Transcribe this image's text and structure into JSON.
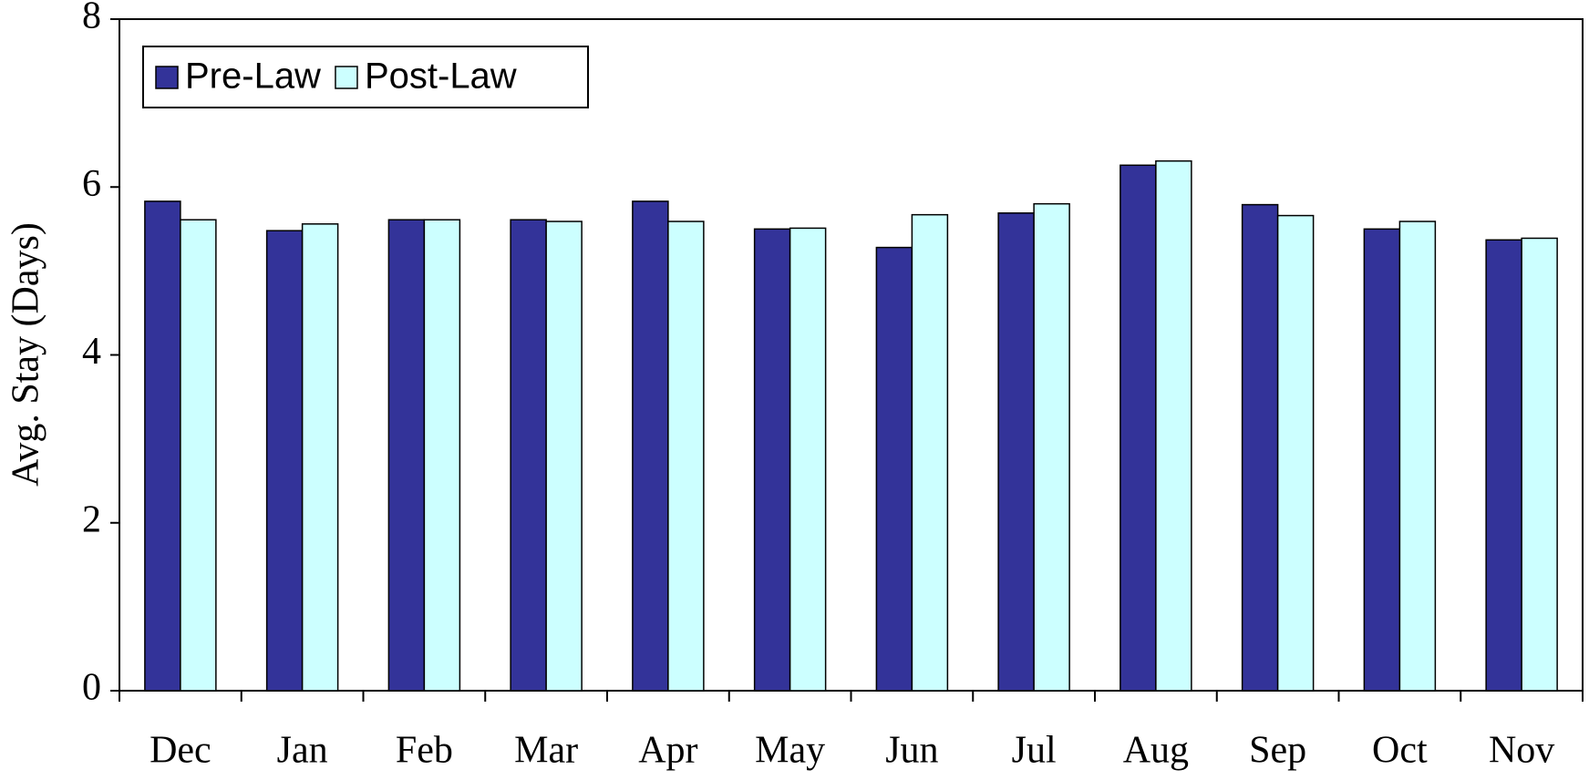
{
  "chart_data": {
    "type": "bar",
    "y_label": "Avg. Stay (Days)",
    "categories": [
      "Dec",
      "Jan",
      "Feb",
      "Mar",
      "Apr",
      "May",
      "Jun",
      "Jul",
      "Aug",
      "Sep",
      "Oct",
      "Nov"
    ],
    "series": [
      {
        "name": "Pre-Law",
        "color": "#333399",
        "values": [
          5.83,
          5.48,
          5.61,
          5.61,
          5.83,
          5.5,
          5.28,
          5.69,
          6.26,
          5.79,
          5.5,
          5.37
        ]
      },
      {
        "name": "Post-Law",
        "color": "#ccffff",
        "values": [
          5.61,
          5.56,
          5.61,
          5.59,
          5.59,
          5.51,
          5.67,
          5.8,
          6.31,
          5.66,
          5.59,
          5.39
        ]
      }
    ],
    "ylim": [
      0,
      8
    ],
    "yticks": [
      0,
      2,
      4,
      6,
      8
    ],
    "grid": false,
    "legend": "upper left"
  }
}
